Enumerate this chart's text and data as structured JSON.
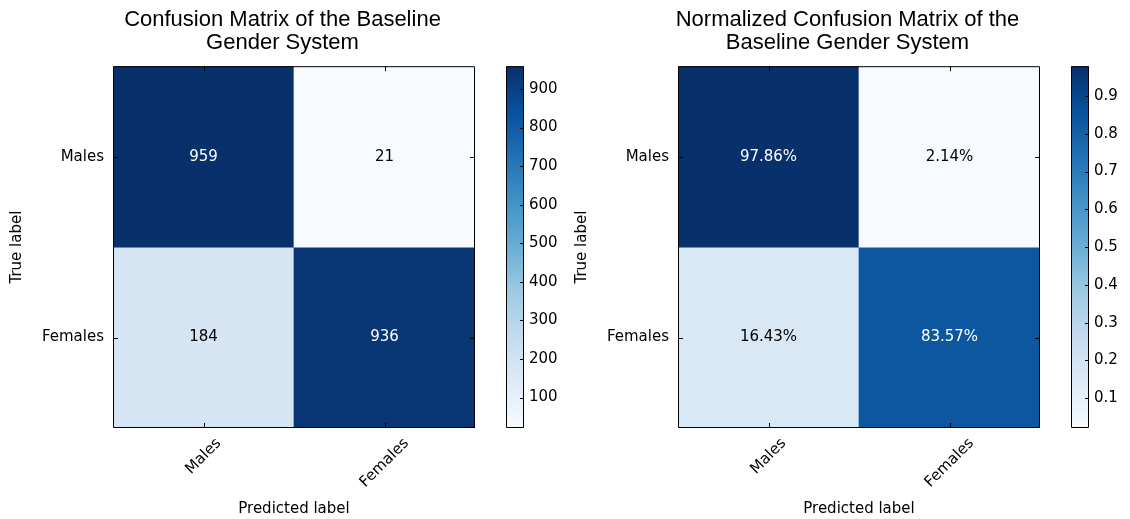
{
  "chart_data": [
    {
      "type": "heatmap",
      "title": "Confusion Matrix of the Baseline\nGender System",
      "xlabel": "Predicted label",
      "ylabel": "True label",
      "categories": [
        "Males",
        "Females"
      ],
      "y_categories": [
        "Males",
        "Females"
      ],
      "cells": [
        [
          959,
          21
        ],
        [
          184,
          936
        ]
      ],
      "data_labels": true,
      "clim": [
        21,
        959
      ],
      "cticks": [
        100,
        200,
        300,
        400,
        500,
        600,
        700,
        800,
        900
      ]
    },
    {
      "type": "heatmap",
      "title": "Normalized Confusion Matrix of the\nBaseline Gender System",
      "xlabel": "Predicted label",
      "ylabel": "True label",
      "categories": [
        "Males",
        "Females"
      ],
      "y_categories": [
        "Males",
        "Females"
      ],
      "cells": [
        [
          0.9786,
          0.0214
        ],
        [
          0.1643,
          0.8357
        ]
      ],
      "cell_labels": [
        [
          "97.86%",
          "2.14%"
        ],
        [
          "16.43%",
          "83.57%"
        ]
      ],
      "clim": [
        0.0214,
        0.9786
      ],
      "cticks": [
        0.1,
        0.2,
        0.3,
        0.4,
        0.5,
        0.6,
        0.7,
        0.8,
        0.9
      ]
    }
  ]
}
